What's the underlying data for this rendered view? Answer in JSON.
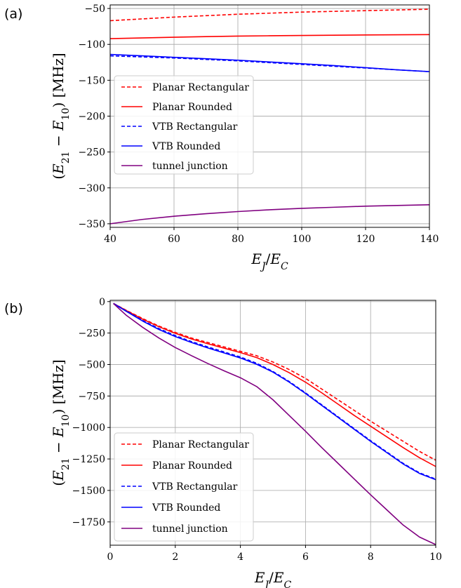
{
  "chart_data": [
    {
      "panel_label": "(a)",
      "type": "line",
      "xlabel": "E_J/E_C",
      "ylabel": "(E_21 − E_10) [MHz]",
      "xlim": [
        40,
        140
      ],
      "ylim": [
        -355,
        -45
      ],
      "xticks": [
        "40",
        "60",
        "80",
        "100",
        "120",
        "140"
      ],
      "yticks": [
        "−50",
        "−100",
        "−150",
        "−200",
        "−250",
        "−300",
        "−350"
      ],
      "grid": true,
      "legend": "upper-left",
      "x": [
        40,
        50,
        60,
        70,
        80,
        90,
        100,
        110,
        120,
        130,
        140
      ],
      "series": [
        {
          "name": "Planar Rectangular",
          "color": "#ff0000",
          "dash": "dashed",
          "values": [
            -67,
            -64.5,
            -62,
            -60,
            -58,
            -56.5,
            -55,
            -54,
            -53,
            -52,
            -51
          ]
        },
        {
          "name": "Planar Rounded",
          "color": "#ff0000",
          "dash": "solid",
          "values": [
            -92,
            -91,
            -90,
            -89.2,
            -88.5,
            -88,
            -87.6,
            -87.2,
            -86.9,
            -86.6,
            -86.4
          ]
        },
        {
          "name": "VTB Rectangular",
          "color": "#0000ff",
          "dash": "dashed",
          "values": [
            -116,
            -117.5,
            -119,
            -121,
            -123,
            -125.5,
            -128,
            -130.5,
            -133,
            -135.5,
            -138
          ]
        },
        {
          "name": "VTB Rounded",
          "color": "#0000ff",
          "dash": "solid",
          "values": [
            -114,
            -116,
            -118,
            -120,
            -122,
            -124.5,
            -127,
            -129.5,
            -132.5,
            -135.5,
            -138
          ]
        },
        {
          "name": "tunnel junction",
          "color": "#800080",
          "dash": "solid",
          "values": [
            -350,
            -344,
            -339.5,
            -336,
            -333,
            -330.5,
            -328.5,
            -327,
            -325.5,
            -324.5,
            -323.5
          ]
        }
      ]
    },
    {
      "panel_label": "(b)",
      "type": "line",
      "xlabel": "E_J/E_C",
      "ylabel": "(E_21 − E_10) [MHz]",
      "xlim": [
        0,
        10
      ],
      "ylim": [
        -1935,
        10
      ],
      "xticks": [
        "0",
        "2",
        "4",
        "6",
        "8",
        "10"
      ],
      "yticks": [
        "0",
        "−250",
        "−500",
        "−750",
        "−1000",
        "−1250",
        "−1500",
        "−1750"
      ],
      "grid": true,
      "legend": "lower-left",
      "x": [
        0.1,
        0.5,
        1,
        1.5,
        2,
        2.5,
        3,
        3.5,
        4,
        4.5,
        5,
        5.5,
        6,
        6.5,
        7,
        7.5,
        8,
        8.5,
        9,
        9.5,
        10
      ],
      "series": [
        {
          "name": "Planar Rectangular",
          "color": "#ff0000",
          "dash": "dashed",
          "values": [
            -15,
            -70,
            -135,
            -195,
            -245,
            -290,
            -325,
            -360,
            -395,
            -430,
            -480,
            -540,
            -610,
            -695,
            -780,
            -865,
            -950,
            -1030,
            -1110,
            -1190,
            -1260
          ]
        },
        {
          "name": "Planar Rounded",
          "color": "#ff0000",
          "dash": "solid",
          "values": [
            -15,
            -72,
            -140,
            -200,
            -252,
            -297,
            -335,
            -370,
            -405,
            -445,
            -500,
            -565,
            -640,
            -725,
            -815,
            -905,
            -990,
            -1075,
            -1160,
            -1240,
            -1310
          ]
        },
        {
          "name": "VTB Rectangular",
          "color": "#0000ff",
          "dash": "dashed",
          "values": [
            -15,
            -75,
            -150,
            -215,
            -270,
            -318,
            -360,
            -400,
            -440,
            -490,
            -555,
            -635,
            -725,
            -820,
            -915,
            -1010,
            -1105,
            -1195,
            -1285,
            -1360,
            -1410
          ]
        },
        {
          "name": "VTB Rounded",
          "color": "#0000ff",
          "dash": "solid",
          "values": [
            -15,
            -78,
            -155,
            -222,
            -278,
            -325,
            -368,
            -408,
            -448,
            -498,
            -560,
            -640,
            -730,
            -825,
            -920,
            -1015,
            -1110,
            -1200,
            -1290,
            -1365,
            -1415
          ]
        },
        {
          "name": "tunnel junction",
          "color": "#800080",
          "dash": "solid",
          "values": [
            -15,
            -110,
            -205,
            -290,
            -365,
            -430,
            -492,
            -550,
            -605,
            -675,
            -780,
            -905,
            -1030,
            -1160,
            -1285,
            -1410,
            -1535,
            -1655,
            -1775,
            -1870,
            -1930
          ]
        }
      ]
    }
  ]
}
